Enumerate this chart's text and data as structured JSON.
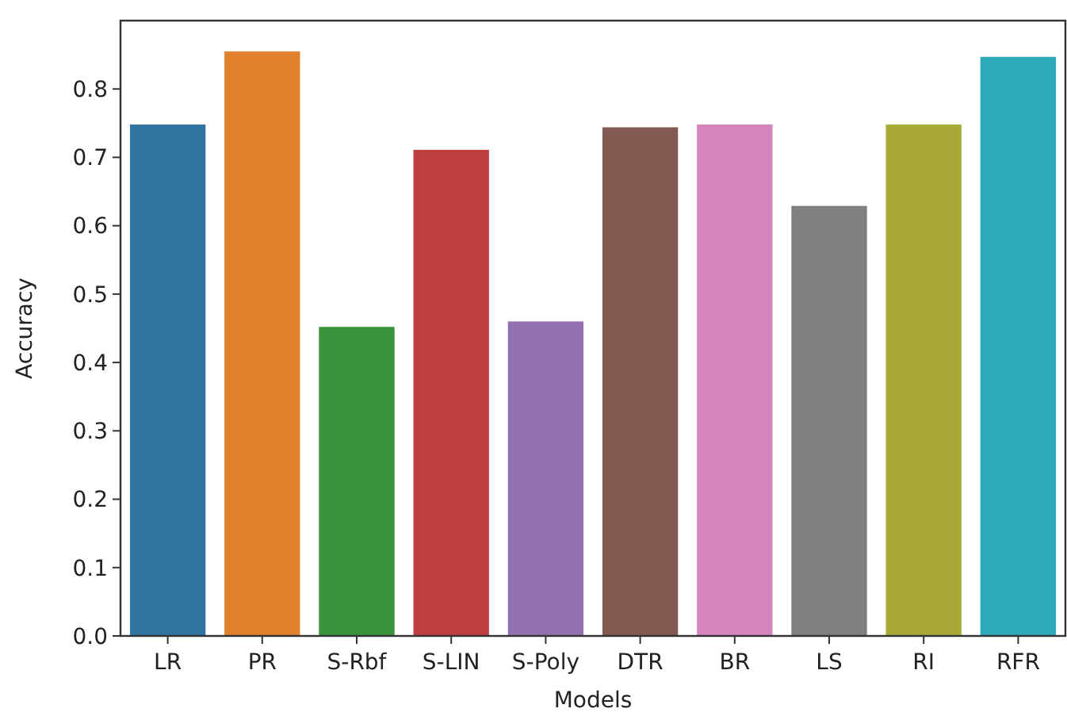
{
  "chart_data": {
    "type": "bar",
    "xlabel": "Models",
    "ylabel": "Accuracy",
    "categories": [
      "LR",
      "PR",
      "S-Rbf",
      "S-LIN",
      "S-Poly",
      "DTR",
      "BR",
      "LS",
      "RI",
      "RFR"
    ],
    "values": [
      0.748,
      0.855,
      0.452,
      0.711,
      0.46,
      0.744,
      0.748,
      0.629,
      0.748,
      0.847
    ],
    "colors": [
      "#3274a1",
      "#e1812c",
      "#3a923a",
      "#c03d3e",
      "#9372b2",
      "#845b53",
      "#d684bd",
      "#7f7f7f",
      "#a9aa35",
      "#2ea9b8"
    ],
    "ylim": [
      0,
      0.9
    ],
    "yticks": [
      {
        "value": 0,
        "label": "0.0"
      },
      0.1,
      0.2,
      0.3,
      0.4,
      0.5,
      0.6,
      0.7,
      0.8
    ],
    "grid": false
  }
}
